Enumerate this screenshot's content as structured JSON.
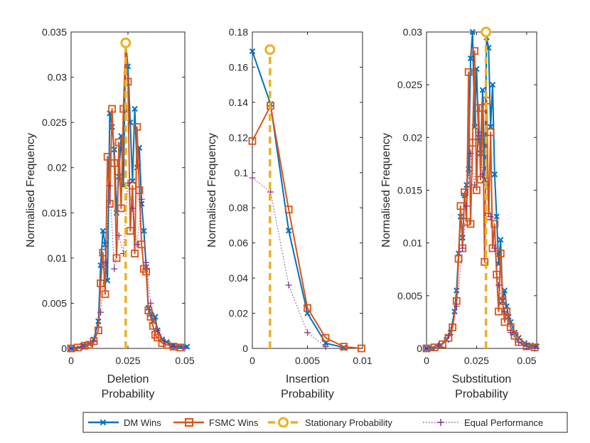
{
  "colors": {
    "dm": "#0072BD",
    "fsmc": "#D95319",
    "stationary": "#EDB120",
    "equal": "#7E2F8E",
    "axis": "#262626"
  },
  "legend": {
    "dm": "DM Wins",
    "fsmc": "FSMC Wins",
    "stationary": "Stationary Probability",
    "equal": "Equal Performance"
  },
  "chart_data": [
    {
      "type": "line",
      "xlabel": [
        "Deletion",
        "Probability"
      ],
      "ylabel": "Normalised Frequency",
      "xlim": [
        0,
        0.05
      ],
      "ylim": [
        0,
        0.035
      ],
      "xticks": [
        0,
        0.025,
        0.05
      ],
      "xticklabels": [
        "0",
        "0.025",
        "0.05"
      ],
      "yticks": [
        0,
        0.005,
        0.01,
        0.015,
        0.02,
        0.025,
        0.03,
        0.035
      ],
      "yticklabels": [
        "0",
        "0.005",
        "0.01",
        "0.015",
        "0.02",
        "0.025",
        "0.03",
        "0.035"
      ],
      "stationary": {
        "x": 0.024,
        "y": 0.0338
      },
      "series": [
        {
          "name": "DM Wins",
          "x": [
            0,
            0.002,
            0.005,
            0.008,
            0.01,
            0.012,
            0.013,
            0.014,
            0.015,
            0.016,
            0.017,
            0.018,
            0.019,
            0.02,
            0.021,
            0.022,
            0.023,
            0.024,
            0.025,
            0.026,
            0.027,
            0.028,
            0.029,
            0.03,
            0.031,
            0.032,
            0.033,
            0.034,
            0.035,
            0.036,
            0.037,
            0.038,
            0.04,
            0.042,
            0.045,
            0.048,
            0.051
          ],
          "y": [
            0,
            0,
            0.0003,
            0.0005,
            0.001,
            0.003,
            0.0092,
            0.013,
            0.0115,
            0.0075,
            0.026,
            0.0245,
            0.022,
            0.015,
            0.019,
            0.0235,
            0.018,
            0.0338,
            0.0312,
            0.025,
            0.0185,
            0.0265,
            0.02,
            0.0222,
            0.016,
            0.013,
            0.009,
            0.0045,
            0.0038,
            0.003,
            0.0035,
            0.002,
            0.001,
            0.0007,
            0.0003,
            0.0002,
            0.0002
          ]
        },
        {
          "name": "FSMC Wins",
          "x": [
            0,
            0.003,
            0.006,
            0.008,
            0.01,
            0.012,
            0.013,
            0.014,
            0.015,
            0.016,
            0.017,
            0.018,
            0.019,
            0.02,
            0.021,
            0.022,
            0.023,
            0.024,
            0.025,
            0.026,
            0.027,
            0.028,
            0.029,
            0.03,
            0.031,
            0.032,
            0.033,
            0.034,
            0.035,
            0.036,
            0.037,
            0.038,
            0.04,
            0.042,
            0.045,
            0.048
          ],
          "y": [
            0,
            0.0001,
            0.0003,
            0.0004,
            0.0008,
            0.002,
            0.0072,
            0.0106,
            0.006,
            0.0212,
            0.016,
            0.0265,
            0.0205,
            0.01,
            0.0228,
            0.0155,
            0.0265,
            0.0338,
            0.0295,
            0.013,
            0.018,
            0.0105,
            0.0245,
            0.0175,
            0.0115,
            0.0088,
            0.0085,
            0.0042,
            0.0035,
            0.0025,
            0.0015,
            0.0012,
            0.0006,
            0.0004,
            0.0002,
            0.0001
          ]
        },
        {
          "name": "Equal Performance",
          "x": [
            0,
            0.005,
            0.01,
            0.013,
            0.015,
            0.017,
            0.019,
            0.021,
            0.023,
            0.025,
            0.027,
            0.029,
            0.031,
            0.033,
            0.035,
            0.038,
            0.041,
            0.045,
            0.05
          ],
          "y": [
            0,
            0.0002,
            0.0008,
            0.004,
            0.0095,
            0.018,
            0.0088,
            0.0125,
            0.0105,
            0.0183,
            0.0155,
            0.0115,
            0.0165,
            0.0095,
            0.005,
            0.002,
            0.0008,
            0.0002,
            0
          ]
        }
      ]
    },
    {
      "type": "line",
      "xlabel": [
        "Insertion",
        "Probability"
      ],
      "ylabel": "Normalised Frequency",
      "xlim": [
        0,
        0.01
      ],
      "ylim": [
        0,
        0.18
      ],
      "xticks": [
        0,
        0.005,
        0.01
      ],
      "xticklabels": [
        "0",
        "0.005",
        "0.01"
      ],
      "yticks": [
        0,
        0.02,
        0.04,
        0.06,
        0.08,
        0.1,
        0.12,
        0.14,
        0.16,
        0.18
      ],
      "yticklabels": [
        "0",
        "0.02",
        "0.04",
        "0.06",
        "0.08",
        "0.1",
        "0.12",
        "0.14",
        "0.16",
        "0.18"
      ],
      "stationary": {
        "x": 0.0016,
        "y": 0.17
      },
      "series": [
        {
          "name": "DM Wins",
          "x": [
            0,
            0.00165,
            0.0033,
            0.005,
            0.00665,
            0.0083
          ],
          "y": [
            0.169,
            0.139,
            0.067,
            0.02,
            0.003,
            0.0005
          ]
        },
        {
          "name": "FSMC Wins",
          "x": [
            0,
            0.00165,
            0.0033,
            0.005,
            0.00665,
            0.0083,
            0.0099
          ],
          "y": [
            0.118,
            0.138,
            0.079,
            0.023,
            0.006,
            0.001,
            0
          ]
        },
        {
          "name": "Equal Performance",
          "x": [
            0,
            0.00165,
            0.0033,
            0.005,
            0.00665
          ],
          "y": [
            0.097,
            0.089,
            0.036,
            0.009,
            0.001
          ]
        }
      ]
    },
    {
      "type": "line",
      "xlabel": [
        "Substitution",
        "Probability"
      ],
      "ylabel": "Normalised Frequency",
      "xlim": [
        0,
        0.055
      ],
      "ylim": [
        0,
        0.03
      ],
      "xticks": [
        0,
        0.025,
        0.05
      ],
      "xticklabels": [
        "0",
        "0.025",
        "0.05"
      ],
      "yticks": [
        0,
        0.005,
        0.01,
        0.015,
        0.02,
        0.025,
        0.03
      ],
      "yticklabels": [
        "0",
        "0.005",
        "0.01",
        "0.015",
        "0.02",
        "0.025",
        "0.03"
      ],
      "stationary": {
        "x": 0.0297,
        "y": 0.03
      },
      "series": [
        {
          "name": "DM Wins",
          "x": [
            0,
            0.003,
            0.007,
            0.01,
            0.012,
            0.014,
            0.015,
            0.016,
            0.017,
            0.018,
            0.019,
            0.02,
            0.021,
            0.022,
            0.023,
            0.024,
            0.025,
            0.026,
            0.027,
            0.028,
            0.029,
            0.03,
            0.031,
            0.032,
            0.033,
            0.034,
            0.035,
            0.036,
            0.037,
            0.038,
            0.039,
            0.04,
            0.041,
            0.042,
            0.044,
            0.046,
            0.049,
            0.052,
            0.055
          ],
          "y": [
            0,
            0,
            0.0003,
            0.0008,
            0.0015,
            0.0035,
            0.0055,
            0.009,
            0.0125,
            0.0105,
            0.0145,
            0.0155,
            0.017,
            0.0275,
            0.03,
            0.021,
            0.0265,
            0.02,
            0.0185,
            0.0245,
            0.016,
            0.0295,
            0.0285,
            0.021,
            0.025,
            0.0165,
            0.0125,
            0.008,
            0.0103,
            0.0045,
            0.0055,
            0.004,
            0.003,
            0.0025,
            0.0015,
            0.001,
            0.0005,
            0.0003,
            0.0002
          ]
        },
        {
          "name": "FSMC Wins",
          "x": [
            0,
            0.004,
            0.008,
            0.011,
            0.013,
            0.015,
            0.016,
            0.017,
            0.018,
            0.019,
            0.02,
            0.021,
            0.022,
            0.023,
            0.024,
            0.025,
            0.026,
            0.027,
            0.028,
            0.029,
            0.03,
            0.031,
            0.032,
            0.033,
            0.034,
            0.035,
            0.036,
            0.037,
            0.038,
            0.039,
            0.04,
            0.042,
            0.044,
            0.046,
            0.05,
            0.054
          ],
          "y": [
            0,
            0.0001,
            0.0004,
            0.001,
            0.002,
            0.0045,
            0.0085,
            0.0135,
            0.0095,
            0.0148,
            0.012,
            0.0262,
            0.0118,
            0.0195,
            0.0282,
            0.015,
            0.0228,
            0.016,
            0.0228,
            0.0082,
            0.0235,
            0.0125,
            0.0205,
            0.0095,
            0.0118,
            0.007,
            0.0035,
            0.009,
            0.0045,
            0.0025,
            0.0035,
            0.002,
            0.0012,
            0.0006,
            0.0002,
            0.0001
          ]
        },
        {
          "name": "Equal Performance",
          "x": [
            0,
            0.006,
            0.011,
            0.015,
            0.018,
            0.02,
            0.022,
            0.024,
            0.026,
            0.028,
            0.03,
            0.032,
            0.034,
            0.036,
            0.039,
            0.042,
            0.046,
            0.05,
            0.054
          ],
          "y": [
            0,
            0.0003,
            0.0012,
            0.004,
            0.0095,
            0.0135,
            0.0185,
            0.0155,
            0.0205,
            0.0165,
            0.0155,
            0.0125,
            0.0095,
            0.006,
            0.0035,
            0.0015,
            0.0006,
            0.0002,
            0
          ]
        }
      ]
    }
  ]
}
